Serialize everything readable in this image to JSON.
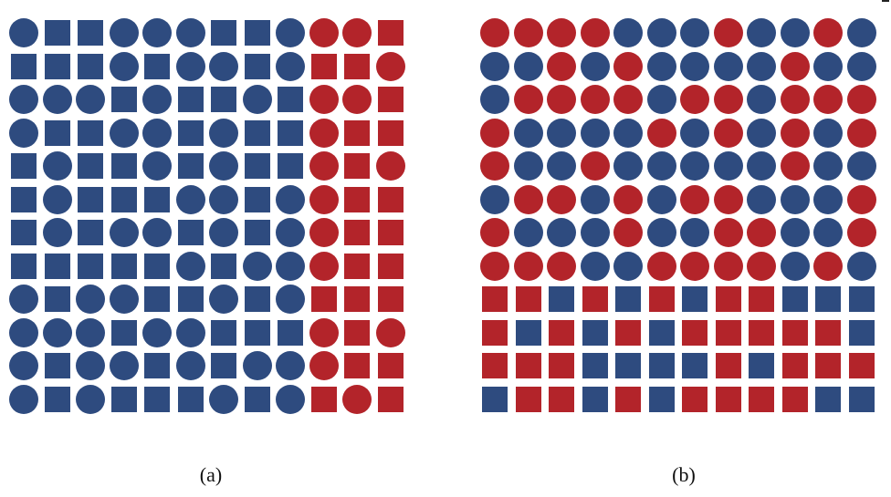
{
  "colors": {
    "blue": "#2e4b7f",
    "red": "#b3242a"
  },
  "legend_note": "",
  "panel_a": {
    "caption": "(a)",
    "rows": [
      [
        "cB",
        "sB",
        "sB",
        "cB",
        "cB",
        "cB",
        "sB",
        "sB",
        "cB",
        "cR",
        "cR",
        "sR"
      ],
      [
        "sB",
        "sB",
        "sB",
        "cB",
        "sB",
        "cB",
        "cB",
        "sB",
        "cB",
        "sR",
        "sR",
        "cR"
      ],
      [
        "cB",
        "cB",
        "cB",
        "sB",
        "cB",
        "sB",
        "sB",
        "cB",
        "sB",
        "cR",
        "cR",
        "sR"
      ],
      [
        "cB",
        "sB",
        "sB",
        "cB",
        "cB",
        "sB",
        "cB",
        "sB",
        "sB",
        "cR",
        "sR",
        "sR"
      ],
      [
        "sB",
        "cB",
        "sB",
        "sB",
        "cB",
        "sB",
        "cB",
        "sB",
        "sB",
        "cR",
        "sR",
        "cR"
      ],
      [
        "sB",
        "cB",
        "sB",
        "sB",
        "sB",
        "cB",
        "cB",
        "sB",
        "cB",
        "cR",
        "sR",
        "sR"
      ],
      [
        "sB",
        "cB",
        "sB",
        "cB",
        "cB",
        "sB",
        "cB",
        "sB",
        "cB",
        "cR",
        "sR",
        "sR"
      ],
      [
        "sB",
        "sB",
        "sB",
        "sB",
        "sB",
        "cB",
        "sB",
        "cB",
        "cB",
        "cR",
        "sR",
        "sR"
      ],
      [
        "cB",
        "sB",
        "cB",
        "cB",
        "sB",
        "sB",
        "cB",
        "sB",
        "cB",
        "sR",
        "sR",
        "sR"
      ],
      [
        "cB",
        "cB",
        "cB",
        "sB",
        "cB",
        "cB",
        "sB",
        "sB",
        "sB",
        "cR",
        "sR",
        "cR"
      ],
      [
        "cB",
        "sB",
        "cB",
        "cB",
        "sB",
        "cB",
        "sB",
        "cB",
        "cB",
        "cR",
        "sR",
        "sR"
      ],
      [
        "cB",
        "sB",
        "cB",
        "sB",
        "sB",
        "sB",
        "cB",
        "sB",
        "cB",
        "sR",
        "cR",
        "sR"
      ]
    ]
  },
  "panel_b": {
    "caption": "(b)",
    "rows": [
      [
        "cR",
        "cR",
        "cR",
        "cR",
        "cB",
        "cB",
        "cB",
        "cR",
        "cB",
        "cB",
        "cR",
        "cB"
      ],
      [
        "cB",
        "cB",
        "cR",
        "cB",
        "cR",
        "cB",
        "cB",
        "cB",
        "cB",
        "cR",
        "cB",
        "cB"
      ],
      [
        "cB",
        "cR",
        "cR",
        "cR",
        "cR",
        "cB",
        "cR",
        "cR",
        "cB",
        "cR",
        "cR",
        "cR"
      ],
      [
        "cR",
        "cB",
        "cB",
        "cB",
        "cB",
        "cR",
        "cB",
        "cR",
        "cB",
        "cR",
        "cB",
        "cR"
      ],
      [
        "cR",
        "cB",
        "cB",
        "cR",
        "cB",
        "cB",
        "cB",
        "cB",
        "cB",
        "cR",
        "cB",
        "cB"
      ],
      [
        "cB",
        "cR",
        "cR",
        "cB",
        "cR",
        "cB",
        "cR",
        "cR",
        "cB",
        "cB",
        "cB",
        "cR"
      ],
      [
        "cR",
        "cB",
        "cB",
        "cB",
        "cR",
        "cB",
        "cB",
        "cR",
        "cR",
        "cB",
        "cB",
        "cR"
      ],
      [
        "cR",
        "cR",
        "cR",
        "cB",
        "cB",
        "cR",
        "cR",
        "cR",
        "cR",
        "cB",
        "cR",
        "cB"
      ],
      [
        "sR",
        "sR",
        "sB",
        "sR",
        "sB",
        "sR",
        "sB",
        "sR",
        "sR",
        "sB",
        "sB",
        "sB"
      ],
      [
        "sR",
        "sB",
        "sR",
        "sB",
        "sR",
        "sB",
        "sR",
        "sR",
        "sR",
        "sR",
        "sR",
        "sB"
      ],
      [
        "sR",
        "sR",
        "sR",
        "sB",
        "sB",
        "sB",
        "sB",
        "sR",
        "sB",
        "sR",
        "sR",
        "sR"
      ],
      [
        "sB",
        "sR",
        "sR",
        "sB",
        "sR",
        "sB",
        "sR",
        "sR",
        "sR",
        "sR",
        "sB",
        "sB"
      ]
    ]
  }
}
